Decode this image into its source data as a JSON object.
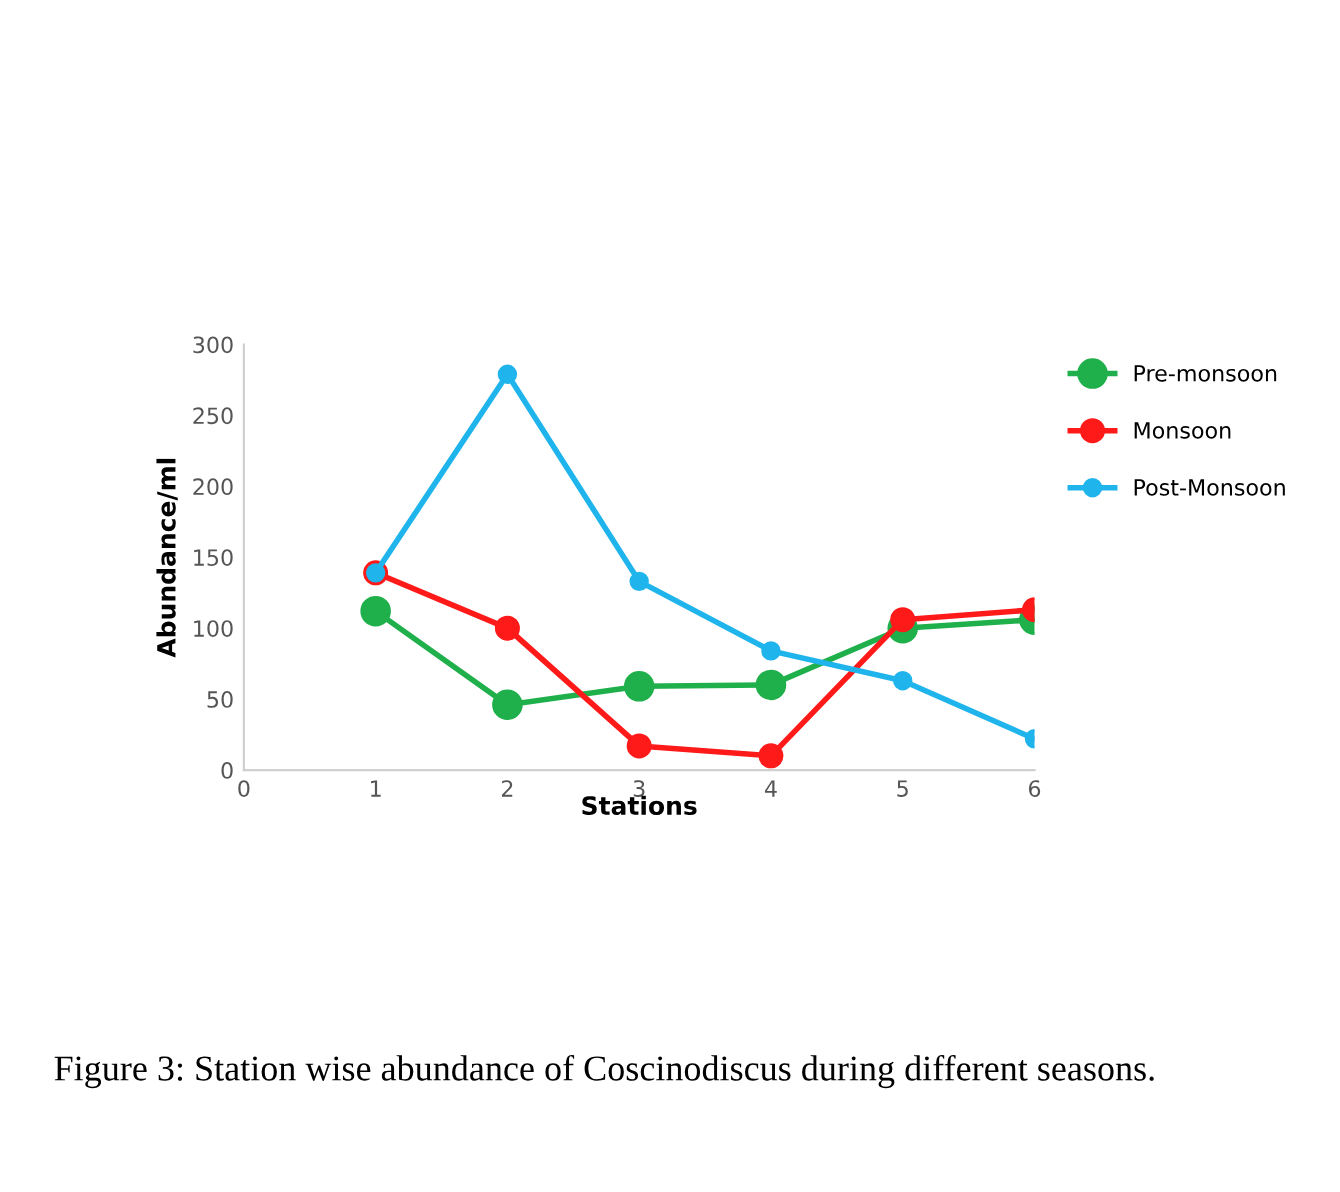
{
  "chart_data": {
    "type": "line",
    "xlabel": "Stations",
    "ylabel": "Abundance/ml",
    "x": [
      1,
      2,
      3,
      4,
      5,
      6
    ],
    "series": [
      {
        "name": "Pre-monsoon",
        "color": "#1fb04c",
        "values": [
          112,
          46,
          59,
          60,
          100,
          106
        ]
      },
      {
        "name": "Monsoon",
        "color": "#ff1a1a",
        "values": [
          139,
          100,
          17,
          10,
          106,
          113
        ]
      },
      {
        "name": "Post-Monsoon",
        "color": "#1fb5ec",
        "values": [
          139,
          279,
          133,
          84,
          63,
          22
        ]
      }
    ],
    "xlim": [
      0,
      6
    ],
    "xticks": [
      0,
      1,
      2,
      3,
      4,
      5,
      6
    ],
    "ylim": [
      0,
      300
    ],
    "yticks": [
      0,
      50,
      100,
      150,
      200,
      250,
      300
    ],
    "grid": false,
    "legend": "right",
    "marker": "circle",
    "line_style": "solid",
    "annotations": [
      "Figure 3: Station wise abundance of Coscinodiscus during different seasons."
    ]
  }
}
